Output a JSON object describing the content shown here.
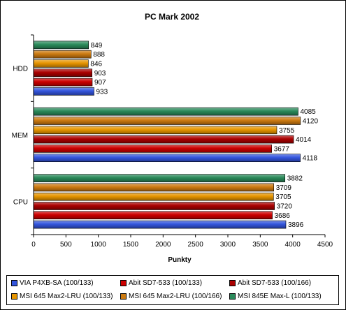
{
  "chart_data": {
    "type": "bar",
    "orientation": "horizontal",
    "title": "PC Mark 2002",
    "xlabel": "Punkty",
    "ylabel": "",
    "xlim": [
      0,
      4500
    ],
    "x_ticks": [
      0,
      500,
      1000,
      1500,
      2000,
      2500,
      3000,
      3500,
      4000,
      4500
    ],
    "categories": [
      "HDD",
      "MEM",
      "CPU"
    ],
    "grid": false,
    "legend_position": "bottom",
    "series": [
      {
        "name": "VIA P4XB-SA (100/133)",
        "color": "#3355dd",
        "values": [
          933,
          4118,
          3896
        ]
      },
      {
        "name": "Abit SD7-533 (100/133)",
        "color": "#cc0000",
        "values": [
          907,
          3677,
          3686
        ]
      },
      {
        "name": "Abit SD7-533 (100/166)",
        "color": "#aa0000",
        "values": [
          903,
          4014,
          3720
        ]
      },
      {
        "name": "MSI 645 Max2-LRU (100/133)",
        "color": "#e69500",
        "values": [
          846,
          3755,
          3705
        ]
      },
      {
        "name": "MSI 645 Max2-LRU (100/166)",
        "color": "#cc7a10",
        "values": [
          888,
          4120,
          3709
        ]
      },
      {
        "name": "MSI 845E Max-L (100/133)",
        "color": "#2a8a5a",
        "values": [
          849,
          4085,
          3882
        ]
      }
    ]
  }
}
